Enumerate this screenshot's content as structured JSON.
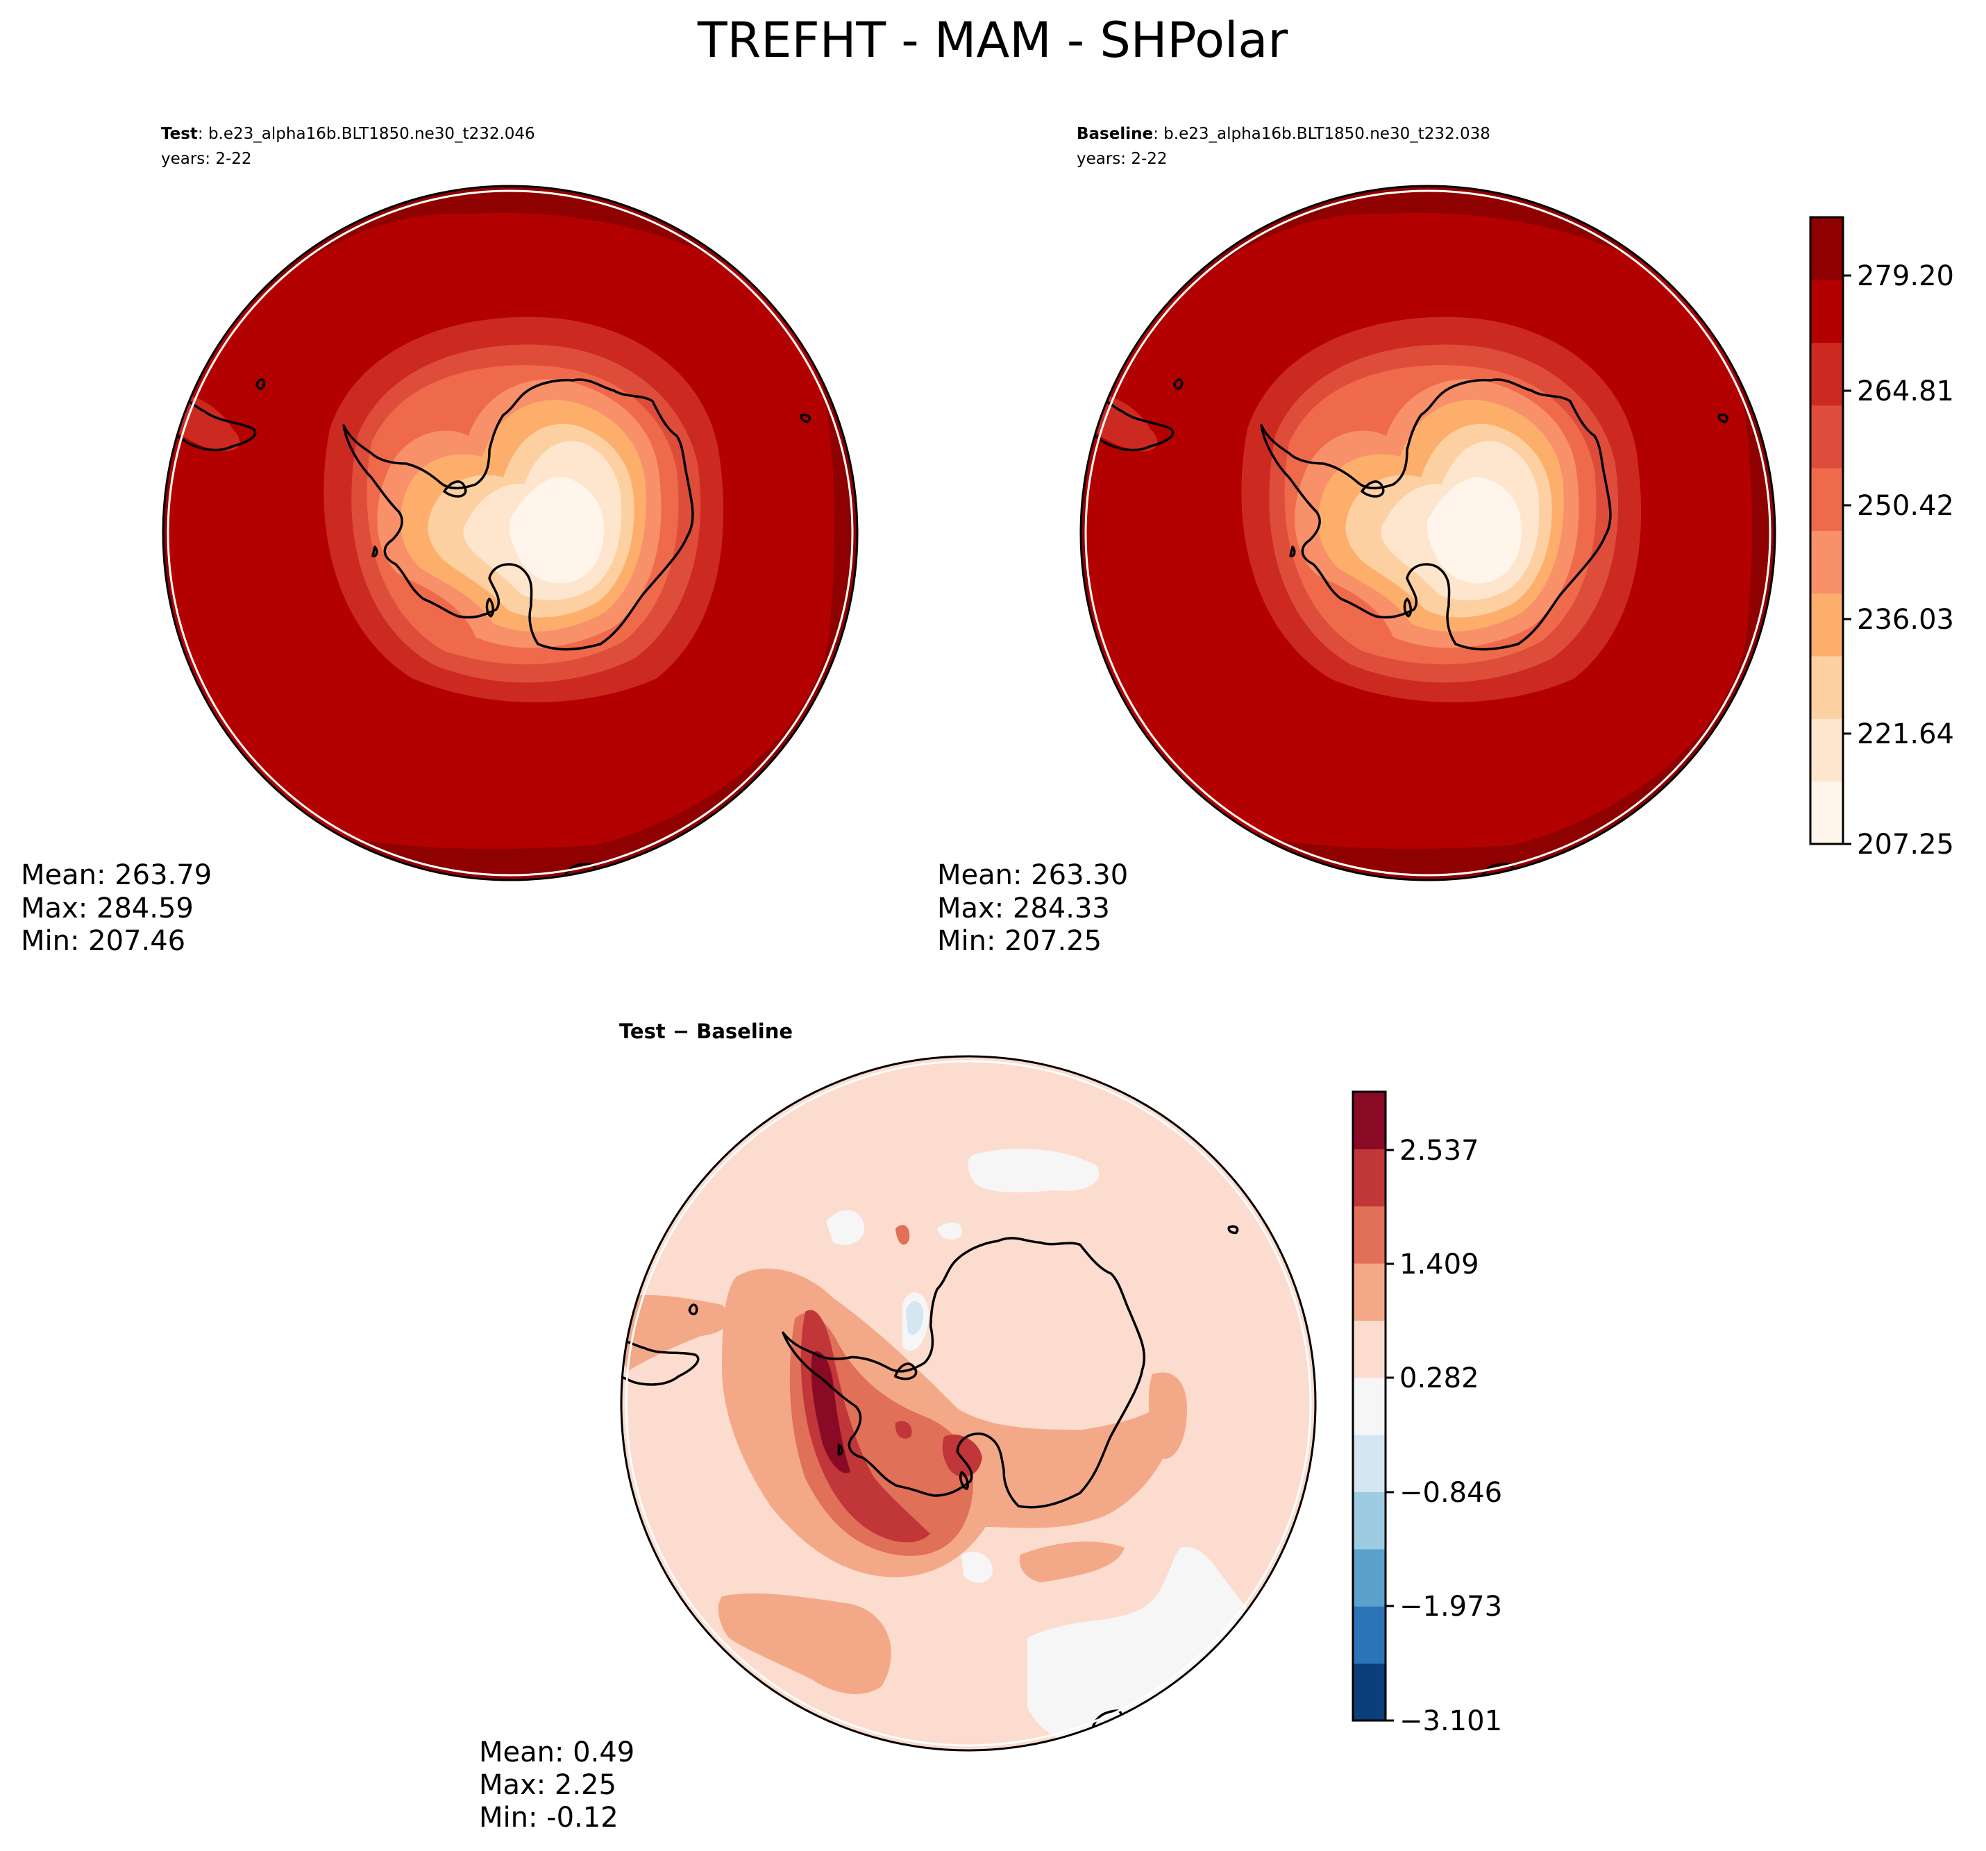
{
  "title": "TREFHT - MAM - SHPolar",
  "panels": {
    "test": {
      "label": "Test",
      "case": ": b.e23_alpha16b.BLT1850.ne30_t232.046",
      "years": "years: 2-22",
      "stats": {
        "mean": "Mean: 263.79",
        "max": "Max: 284.59",
        "min": "Min: 207.46"
      }
    },
    "baseline": {
      "label": "Baseline",
      "case": ": b.e23_alpha16b.BLT1850.ne30_t232.038",
      "years": "years: 2-22",
      "stats": {
        "mean": "Mean: 263.30",
        "max": "Max: 284.33",
        "min": "Min: 207.25"
      }
    },
    "diff": {
      "label": "Test − Baseline",
      "stats": {
        "mean": "Mean:  0.49",
        "max": "Max:  2.25",
        "min": "Min: -0.12"
      }
    }
  },
  "colorbars": {
    "top": {
      "ticks": [
        "279.20",
        "264.81",
        "250.42",
        "236.03",
        "221.64",
        "207.25"
      ],
      "colors": [
        "#fff5eb",
        "#fee6ce",
        "#fdd0a2",
        "#fdae6b",
        "#f8906a",
        "#ef6a4a",
        "#de4d3a",
        "#cc2a21",
        "#b30000",
        "#8f0000"
      ]
    },
    "diff": {
      "ticks": [
        "2.537",
        "1.409",
        "0.282",
        "−0.846",
        "−1.973",
        "−3.101"
      ],
      "colors": [
        "#0a3f7a",
        "#2b74b8",
        "#5aa1ce",
        "#9ccbe2",
        "#d3e6f1",
        "#f6f6f6",
        "#fbdcce",
        "#f3a987",
        "#e07058",
        "#c13639",
        "#880a25"
      ]
    }
  }
}
